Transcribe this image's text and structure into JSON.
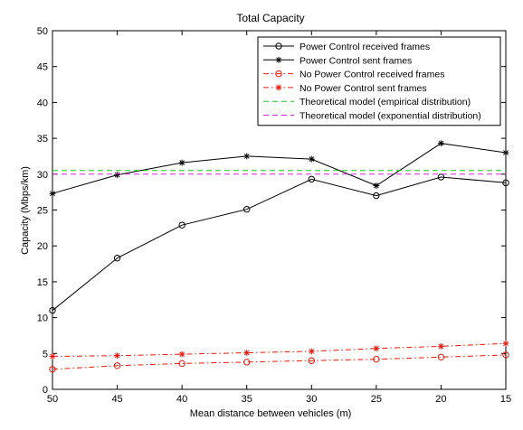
{
  "chart_data": {
    "type": "line",
    "title": "Total Capacity",
    "xlabel": "Mean distance between vehicles (m)",
    "ylabel": "Capacity (Mbps/km)",
    "x": [
      50,
      45,
      40,
      35,
      30,
      25,
      20,
      15
    ],
    "x_ticks": [
      "50",
      "45",
      "40",
      "35",
      "30",
      "25",
      "20",
      "15"
    ],
    "x_reversed": true,
    "xlim": [
      50,
      15
    ],
    "ylim": [
      0,
      50
    ],
    "y_ticks": [
      "0",
      "5",
      "10",
      "15",
      "20",
      "25",
      "30",
      "35",
      "40",
      "45",
      "50"
    ],
    "grid": false,
    "legend_position": "top-right",
    "series": [
      {
        "name": "Power Control received frames",
        "color": "#000000",
        "style": "solid",
        "marker": "circle",
        "values": [
          11.0,
          18.3,
          22.9,
          25.1,
          29.3,
          27.0,
          29.6,
          28.8
        ]
      },
      {
        "name": "Power Control sent frames",
        "color": "#000000",
        "style": "solid",
        "marker": "star",
        "values": [
          27.3,
          29.9,
          31.6,
          32.5,
          32.1,
          28.4,
          34.3,
          33.0
        ]
      },
      {
        "name": "No Power Control received frames",
        "color": "#e8190d",
        "style": "dashdot",
        "marker": "circle",
        "values": [
          2.8,
          3.3,
          3.6,
          3.8,
          4.0,
          4.2,
          4.5,
          4.8
        ]
      },
      {
        "name": "No Power Control sent frames",
        "color": "#e8190d",
        "style": "dashdot",
        "marker": "star",
        "values": [
          4.6,
          4.7,
          4.9,
          5.1,
          5.3,
          5.7,
          6.0,
          6.4
        ]
      },
      {
        "name": "Theoretical model (empirical distribution)",
        "color": "#22c322",
        "style": "dashed",
        "marker": "none",
        "values": [
          30.5,
          30.5,
          30.5,
          30.5,
          30.5,
          30.5,
          30.5,
          30.5
        ]
      },
      {
        "name": "Theoretical model (exponential distribution)",
        "color": "#dd22dd",
        "style": "dashed",
        "marker": "none",
        "values": [
          30.0,
          30.0,
          30.0,
          30.0,
          30.0,
          30.0,
          30.0,
          30.0
        ]
      }
    ]
  }
}
